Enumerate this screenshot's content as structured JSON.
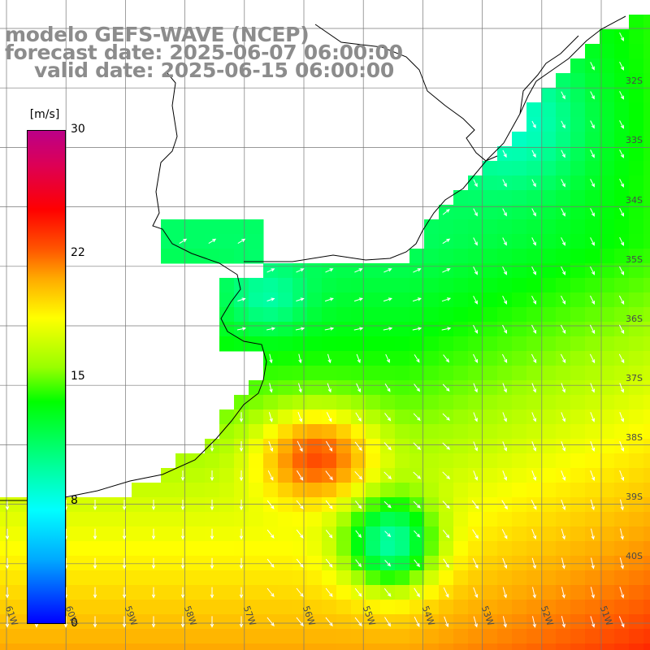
{
  "header": {
    "line1": "modelo GEFS-WAVE (NCEP)",
    "line2": "forecast date: 2025-06-07 06:00:00",
    "line3": "valid date: 2025-06-15 06:00:00"
  },
  "colorbar": {
    "units": "[m/s]",
    "ticks": [
      "30",
      "22",
      "15",
      "8",
      "0"
    ],
    "min": 0,
    "max": 30
  },
  "axes": {
    "lat_labels": [
      "32S",
      "33S",
      "34S",
      "35S",
      "36S",
      "37S",
      "38S",
      "39S",
      "40S"
    ],
    "lon_labels": [
      "61W",
      "60W",
      "59W",
      "58W",
      "57W",
      "56W",
      "55W",
      "54W",
      "53W",
      "52W",
      "51W"
    ]
  },
  "field": {
    "variable": "wind speed and direction",
    "max_region": "near 56W 38S",
    "min_region": "near 55W 40S"
  }
}
